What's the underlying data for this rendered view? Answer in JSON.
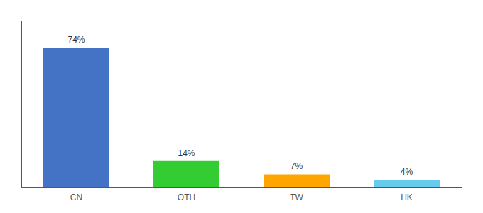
{
  "chart_data": {
    "type": "bar",
    "categories": [
      "CN",
      "OTH",
      "TW",
      "HK"
    ],
    "values": [
      74,
      14,
      7,
      4
    ],
    "value_labels": [
      "74%",
      "14%",
      "7%",
      "4%"
    ],
    "colors": [
      "#4472c4",
      "#33cc33",
      "#ffa500",
      "#66ccee"
    ],
    "ylim": [
      0,
      88
    ],
    "tick_labels": "x",
    "data_labels": true,
    "grid": false
  }
}
